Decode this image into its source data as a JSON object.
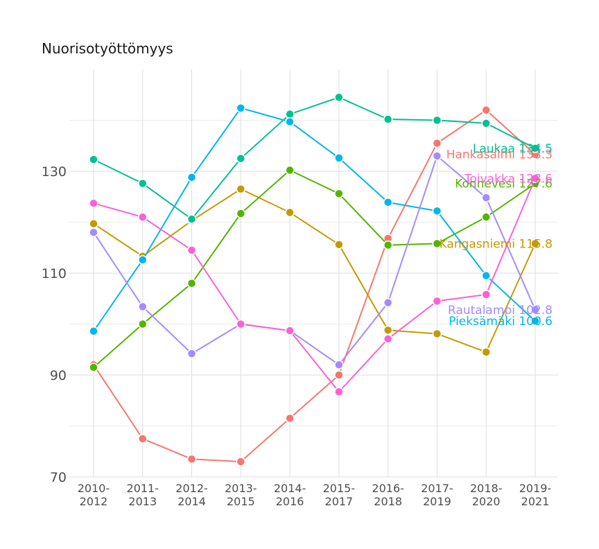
{
  "chart_data": {
    "type": "line",
    "title": "Nuorisotyöttömyys",
    "xlabel": "",
    "ylabel": "",
    "categories": [
      [
        "2010-",
        "2012"
      ],
      [
        "2011-",
        "2013"
      ],
      [
        "2012-",
        "2014"
      ],
      [
        "2013-",
        "2015"
      ],
      [
        "2014-",
        "2016"
      ],
      [
        "2015-",
        "2017"
      ],
      [
        "2016-",
        "2018"
      ],
      [
        "2017-",
        "2019"
      ],
      [
        "2018-",
        "2020"
      ],
      [
        "2019-",
        "2021"
      ]
    ],
    "ylim": [
      70,
      150
    ],
    "yticks": [
      "70",
      "90",
      "110",
      "130"
    ],
    "ytick_values": [
      70,
      90,
      110,
      130
    ],
    "yminor": [
      80,
      100,
      120,
      140
    ],
    "grid": true,
    "legend": "none (end-of-line labels)",
    "series": [
      {
        "name": "Hankasalmi",
        "label": "Hankasalmi 133.3",
        "color": "#F8766D",
        "values": [
          92,
          77.5,
          73.5,
          73,
          81.5,
          90,
          116.8,
          135.5,
          142,
          133.3
        ]
      },
      {
        "name": "Kangasniemi",
        "label": "Kangasniemi 115.8",
        "color": "#C49A00",
        "values": [
          119.7,
          113.3,
          120.3,
          126.5,
          121.9,
          115.6,
          98.8,
          98.1,
          94.5,
          115.8
        ]
      },
      {
        "name": "Konnevesi",
        "label": "Konnevesi 127.6",
        "color": "#53B400",
        "values": [
          91.5,
          100,
          108,
          121.7,
          130.2,
          125.6,
          115.5,
          115.8,
          121,
          127.6
        ]
      },
      {
        "name": "Laukaa",
        "label": "Laukaa 134.5",
        "color": "#00C094",
        "values": [
          132.3,
          127.6,
          120.6,
          132.5,
          141.2,
          144.5,
          140.2,
          140,
          139.4,
          134.5
        ]
      },
      {
        "name": "Pieksämäki",
        "label": "Pieksämäki 100.6",
        "color": "#00B6EB",
        "values": [
          98.6,
          112.6,
          128.8,
          142.4,
          139.7,
          132.6,
          123.9,
          122.2,
          109.5,
          100.6
        ]
      },
      {
        "name": "Rautalampi",
        "label": "Rautalampi 102.8",
        "color": "#A58AFF",
        "values": [
          118,
          103.4,
          94.2,
          100,
          98.7,
          92,
          104.2,
          133,
          124.8,
          102.8
        ]
      },
      {
        "name": "Toivakka",
        "label": "Toivakka 128.6",
        "color": "#FB61D7",
        "values": [
          123.7,
          121,
          114.5,
          100,
          98.7,
          86.7,
          97.1,
          104.5,
          105.8,
          128.6
        ]
      }
    ]
  }
}
